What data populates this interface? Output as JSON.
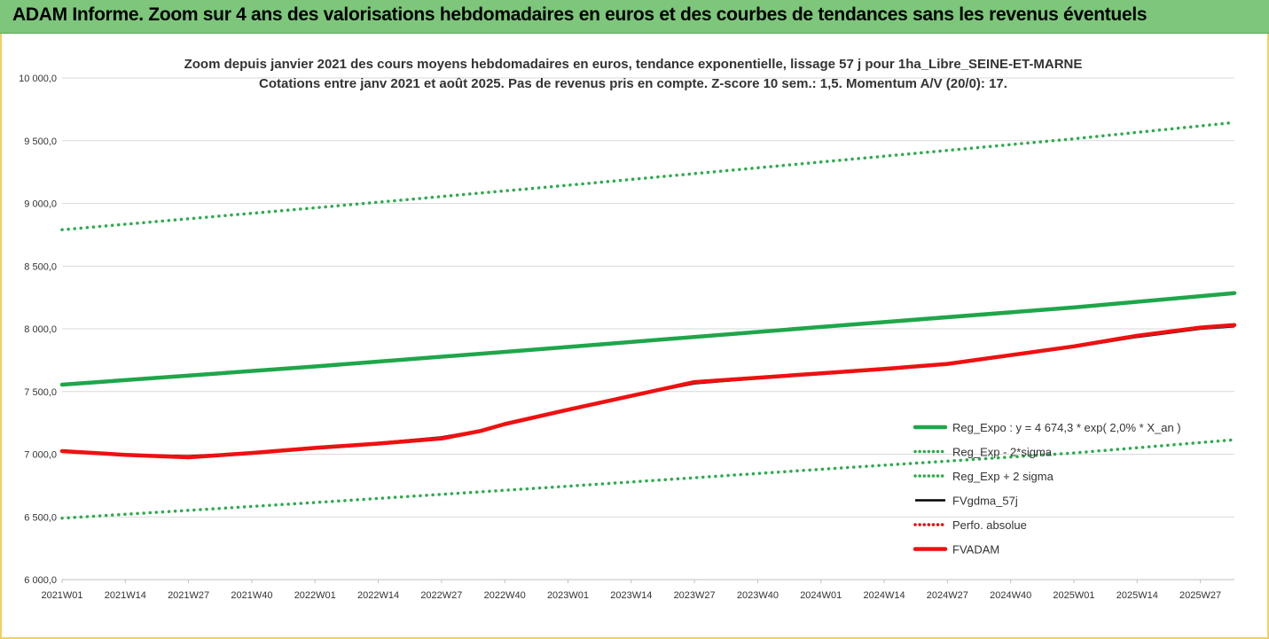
{
  "banner": {
    "title": "ADAM Informe. Zoom sur 4 ans des valorisations hebdomadaires en euros et des courbes de tendances sans les revenus éventuels"
  },
  "colors": {
    "reg": "#1fa64a",
    "sigma": "#2eab4e",
    "fvgdma": "#000000",
    "perfo": "#e01010",
    "fvadam": "#ee1111",
    "banner": "#7dc67b",
    "frame": "#f0d060"
  },
  "chart_data": {
    "type": "line",
    "title": [
      "Zoom depuis janvier 2021 des cours moyens hebdomadaires en euros, tendance exponentielle, lissage 57 j pour 1ha_Libre_SEINE-ET-MARNE",
      "Cotations entre janv 2021 et août 2025. Pas de revenus pris en compte. Z-score 10 sem.: 1,5. Momentum A/V (20/0): 17."
    ],
    "xlabel": "",
    "ylabel": "",
    "ylim": [
      6000,
      10000
    ],
    "yticks": [
      "6 000,0",
      "6 500,0",
      "7 000,0",
      "7 500,0",
      "8 000,0",
      "8 500,0",
      "9 000,0",
      "9 500,0",
      "10 000,0"
    ],
    "x_tick_labels": [
      "2021W01",
      "2021W14",
      "2021W27",
      "2021W40",
      "2022W01",
      "2022W14",
      "2022W27",
      "2022W40",
      "2023W01",
      "2023W14",
      "2023W27",
      "2023W40",
      "2024W01",
      "2024W14",
      "2024W27",
      "2024W40",
      "2025W01",
      "2025W14",
      "2025W27"
    ],
    "x_extent": [
      "2021W01",
      "2025W34"
    ],
    "grid": "horizontal",
    "legend_position": "bottom-right",
    "series": [
      {
        "name": "Reg_Expo : y = 4 674,3 * exp( 2,0% *  X_an )",
        "style": "solid-thick",
        "color": "#1fa64a",
        "points": [
          [
            "2021W01",
            7555
          ],
          [
            "2022W01",
            7700
          ],
          [
            "2023W01",
            7855
          ],
          [
            "2024W01",
            8015
          ],
          [
            "2025W01",
            8170
          ],
          [
            "2025W34",
            8285
          ]
        ]
      },
      {
        "name": "Reg_Exp - 2*sigma",
        "style": "dotted",
        "color": "#2eab4e",
        "points": [
          [
            "2021W01",
            6490
          ],
          [
            "2022W01",
            6615
          ],
          [
            "2023W01",
            6745
          ],
          [
            "2024W01",
            6880
          ],
          [
            "2025W01",
            7010
          ],
          [
            "2025W34",
            7115
          ]
        ]
      },
      {
        "name": "Reg_Exp + 2 sigma",
        "style": "dotted",
        "color": "#2eab4e",
        "points": [
          [
            "2021W01",
            8790
          ],
          [
            "2022W01",
            8965
          ],
          [
            "2023W01",
            9145
          ],
          [
            "2024W01",
            9330
          ],
          [
            "2025W01",
            9515
          ],
          [
            "2025W34",
            9645
          ]
        ]
      },
      {
        "name": "FVgdma_57j",
        "style": "solid",
        "color": "#000000",
        "points": [
          [
            "2021W01",
            7025
          ],
          [
            "2021W14",
            6995
          ],
          [
            "2021W27",
            6985
          ],
          [
            "2021W40",
            7010
          ],
          [
            "2022W01",
            7050
          ],
          [
            "2022W14",
            7090
          ],
          [
            "2022W27",
            7135
          ],
          [
            "2022W35",
            7190
          ],
          [
            "2022W40",
            7240
          ],
          [
            "2023W01",
            7355
          ],
          [
            "2023W14",
            7465
          ],
          [
            "2023W27",
            7565
          ],
          [
            "2023W40",
            7605
          ],
          [
            "2024W01",
            7640
          ],
          [
            "2024W14",
            7675
          ],
          [
            "2024W27",
            7715
          ],
          [
            "2024W40",
            7785
          ],
          [
            "2025W01",
            7855
          ],
          [
            "2025W14",
            7935
          ],
          [
            "2025W27",
            8000
          ],
          [
            "2025W34",
            8020
          ]
        ]
      },
      {
        "name": "Perfo. absolue",
        "style": "dotted",
        "color": "#e01010",
        "points": [
          [
            "2021W01",
            7025
          ],
          [
            "2021W14",
            6995
          ],
          [
            "2021W27",
            6975
          ],
          [
            "2021W40",
            7010
          ],
          [
            "2022W01",
            7050
          ],
          [
            "2022W14",
            7085
          ],
          [
            "2022W27",
            7125
          ],
          [
            "2022W35",
            7185
          ],
          [
            "2022W40",
            7240
          ],
          [
            "2023W01",
            7355
          ],
          [
            "2023W14",
            7465
          ],
          [
            "2023W27",
            7575
          ],
          [
            "2023W40",
            7610
          ],
          [
            "2024W01",
            7645
          ],
          [
            "2024W14",
            7680
          ],
          [
            "2024W27",
            7720
          ],
          [
            "2024W40",
            7790
          ],
          [
            "2025W01",
            7860
          ],
          [
            "2025W14",
            7945
          ],
          [
            "2025W27",
            8010
          ],
          [
            "2025W34",
            8030
          ]
        ]
      },
      {
        "name": "FVADAM",
        "style": "solid-thick",
        "color": "#ee1111",
        "points": [
          [
            "2021W01",
            7025
          ],
          [
            "2021W14",
            6995
          ],
          [
            "2021W27",
            6975
          ],
          [
            "2021W40",
            7010
          ],
          [
            "2022W01",
            7050
          ],
          [
            "2022W14",
            7085
          ],
          [
            "2022W27",
            7125
          ],
          [
            "2022W35",
            7185
          ],
          [
            "2022W40",
            7240
          ],
          [
            "2023W01",
            7355
          ],
          [
            "2023W14",
            7465
          ],
          [
            "2023W27",
            7575
          ],
          [
            "2023W40",
            7610
          ],
          [
            "2024W01",
            7645
          ],
          [
            "2024W14",
            7680
          ],
          [
            "2024W27",
            7720
          ],
          [
            "2024W40",
            7790
          ],
          [
            "2025W01",
            7860
          ],
          [
            "2025W14",
            7945
          ],
          [
            "2025W27",
            8010
          ],
          [
            "2025W34",
            8030
          ]
        ]
      }
    ]
  }
}
